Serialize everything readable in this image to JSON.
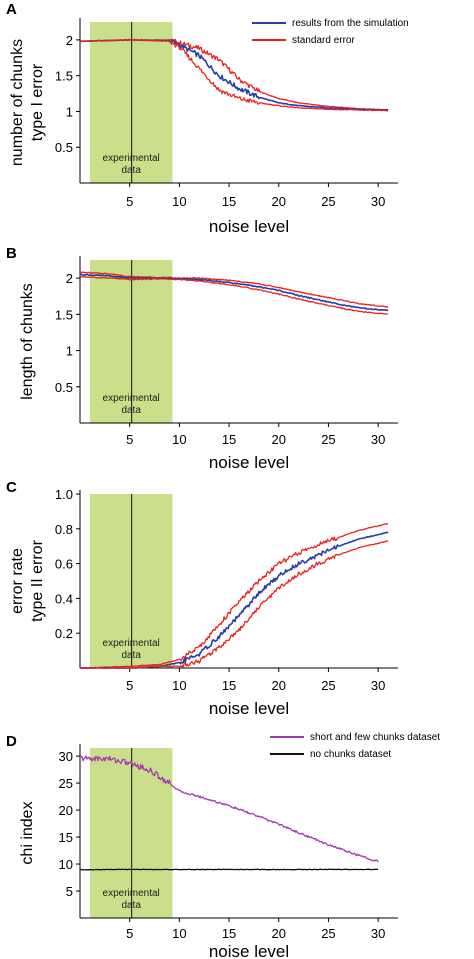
{
  "colors": {
    "mean": "#2b3fa3",
    "error": "#e8231f",
    "band": "#c9df8a",
    "purple": "#a23bb0",
    "black": "#111111"
  },
  "chart_data": [
    {
      "panel": "A",
      "type": "line",
      "ylabel_lines": [
        "number of chunks",
        "type I error"
      ],
      "xlabel": "noise level",
      "xlim": [
        0,
        32
      ],
      "ylim": [
        0,
        2.25
      ],
      "yticks": [
        "0.5",
        "1",
        "1.5",
        "2"
      ],
      "xticks": [
        "5",
        "10",
        "15",
        "20",
        "25",
        "30"
      ],
      "band": {
        "x": [
          1,
          9.3
        ],
        "label_lines": [
          "experimental",
          "data"
        ]
      },
      "vline_x": 5.2,
      "legend": [
        {
          "label": "results from the simulation",
          "color": "mean"
        },
        {
          "label": "standard error",
          "color": "error"
        }
      ],
      "series": [
        {
          "role": "upper",
          "color": "error",
          "x": [
            0,
            5,
            9,
            10,
            12,
            14,
            16,
            18,
            20,
            22,
            25,
            28,
            31
          ],
          "y": [
            1.98,
            2.0,
            2.0,
            1.96,
            1.88,
            1.72,
            1.45,
            1.28,
            1.18,
            1.12,
            1.07,
            1.04,
            1.02
          ]
        },
        {
          "role": "mean",
          "color": "mean",
          "x": [
            0,
            5,
            9,
            10,
            12,
            14,
            16,
            18,
            20,
            22,
            25,
            28,
            31
          ],
          "y": [
            1.98,
            2.0,
            1.99,
            1.93,
            1.78,
            1.5,
            1.32,
            1.2,
            1.12,
            1.08,
            1.05,
            1.03,
            1.02
          ]
        },
        {
          "role": "lower",
          "color": "error",
          "x": [
            0,
            5,
            9,
            10,
            12,
            14,
            16,
            18,
            20,
            22,
            25,
            28,
            31
          ],
          "y": [
            1.98,
            2.0,
            1.98,
            1.9,
            1.6,
            1.3,
            1.18,
            1.12,
            1.08,
            1.05,
            1.03,
            1.02,
            1.01
          ]
        }
      ]
    },
    {
      "panel": "B",
      "type": "line",
      "ylabel_lines": [
        "length of chunks"
      ],
      "xlabel": "noise level",
      "xlim": [
        0,
        32
      ],
      "ylim": [
        0,
        2.25
      ],
      "yticks": [
        "0.5",
        "1",
        "1.5",
        "2"
      ],
      "xticks": [
        "5",
        "10",
        "15",
        "20",
        "25",
        "30"
      ],
      "band": {
        "x": [
          1,
          9.3
        ],
        "label_lines": [
          "experimental",
          "data"
        ]
      },
      "vline_x": 5.2,
      "series": [
        {
          "role": "upper",
          "color": "error",
          "x": [
            0,
            3,
            5,
            8,
            10,
            12,
            15,
            18,
            20,
            22,
            25,
            28,
            31
          ],
          "y": [
            2.08,
            2.06,
            2.02,
            2.01,
            2.0,
            2.0,
            1.97,
            1.92,
            1.87,
            1.81,
            1.73,
            1.65,
            1.6
          ]
        },
        {
          "role": "mean",
          "color": "mean",
          "x": [
            0,
            3,
            5,
            8,
            10,
            12,
            15,
            18,
            20,
            22,
            25,
            28,
            31
          ],
          "y": [
            2.05,
            2.03,
            2.0,
            2.0,
            1.99,
            1.98,
            1.94,
            1.88,
            1.83,
            1.76,
            1.67,
            1.59,
            1.55
          ]
        },
        {
          "role": "lower",
          "color": "error",
          "x": [
            0,
            3,
            5,
            8,
            10,
            12,
            15,
            18,
            20,
            22,
            25,
            28,
            31
          ],
          "y": [
            2.02,
            2.0,
            1.98,
            1.99,
            1.98,
            1.96,
            1.91,
            1.84,
            1.78,
            1.71,
            1.62,
            1.54,
            1.5
          ]
        }
      ]
    },
    {
      "panel": "C",
      "type": "line",
      "ylabel_lines": [
        "error rate",
        "type II error"
      ],
      "xlabel": "noise level",
      "xlim": [
        0,
        32
      ],
      "ylim": [
        0,
        1.0
      ],
      "yticks": [
        "0.2",
        "0.4",
        "0.6",
        "0.8",
        "1.0"
      ],
      "xticks": [
        "5",
        "10",
        "15",
        "20",
        "25",
        "30"
      ],
      "band": {
        "x": [
          1,
          9.3
        ],
        "label_lines": [
          "experimental",
          "data"
        ]
      },
      "vline_x": 5.2,
      "series": [
        {
          "role": "upper",
          "color": "error",
          "x": [
            0,
            5,
            8,
            10,
            12,
            14,
            16,
            18,
            20,
            22,
            24,
            26,
            28,
            31
          ],
          "y": [
            0.0,
            0.01,
            0.02,
            0.05,
            0.12,
            0.25,
            0.38,
            0.5,
            0.6,
            0.66,
            0.71,
            0.75,
            0.79,
            0.83
          ]
        },
        {
          "role": "mean",
          "color": "mean",
          "x": [
            0,
            5,
            8,
            10,
            12,
            14,
            16,
            18,
            20,
            22,
            24,
            26,
            28,
            31
          ],
          "y": [
            0.0,
            0.0,
            0.01,
            0.03,
            0.08,
            0.18,
            0.3,
            0.43,
            0.53,
            0.6,
            0.65,
            0.7,
            0.74,
            0.78
          ]
        },
        {
          "role": "lower",
          "color": "error",
          "x": [
            0,
            5,
            8,
            10,
            12,
            14,
            16,
            18,
            20,
            22,
            24,
            26,
            28,
            31
          ],
          "y": [
            0.0,
            0.0,
            0.01,
            0.01,
            0.04,
            0.12,
            0.22,
            0.35,
            0.46,
            0.54,
            0.6,
            0.65,
            0.69,
            0.73
          ]
        }
      ]
    },
    {
      "panel": "D",
      "type": "line",
      "ylabel_lines": [
        "chi index"
      ],
      "xlabel": "noise level",
      "xlim": [
        0,
        32
      ],
      "ylim": [
        0,
        31.5
      ],
      "yticks": [
        "5",
        "10",
        "15",
        "20",
        "25",
        "30"
      ],
      "xticks": [
        "5",
        "10",
        "15",
        "20",
        "25",
        "30"
      ],
      "band": {
        "x": [
          1,
          9.3
        ],
        "label_lines": [
          "experimental",
          "data"
        ]
      },
      "vline_x": 5.2,
      "legend": [
        {
          "label": "short and few chunks dataset",
          "color": "purple"
        },
        {
          "label": "no chunks dataset",
          "color": "black"
        }
      ],
      "series": [
        {
          "role": "purple",
          "color": "purple",
          "x": [
            0,
            3,
            5,
            7,
            9,
            10,
            12,
            15,
            18,
            20,
            22,
            25,
            28,
            30
          ],
          "y": [
            29.6,
            29.5,
            28.7,
            27.4,
            25.0,
            23.5,
            22.5,
            20.8,
            18.8,
            17.4,
            15.8,
            13.6,
            11.6,
            10.5
          ]
        },
        {
          "role": "black",
          "color": "black",
          "x": [
            0,
            5,
            10,
            15,
            20,
            25,
            30
          ],
          "y": [
            8.95,
            9.0,
            8.98,
            9.0,
            8.97,
            9.0,
            9.0
          ]
        }
      ]
    }
  ]
}
